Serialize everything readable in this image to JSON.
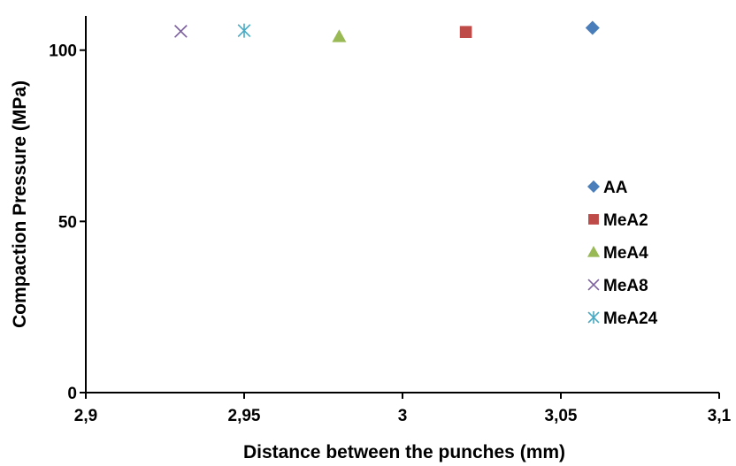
{
  "chart_data": {
    "type": "scatter",
    "title": "",
    "xlabel": "Distance between the punches (mm)",
    "ylabel": "Compaction Pressure (MPa)",
    "xlim": [
      2.9,
      3.1
    ],
    "ylim": [
      0,
      110
    ],
    "x_ticks": [
      2.9,
      2.95,
      3.0,
      3.05,
      3.1
    ],
    "x_tick_labels": [
      "2,9",
      "2,95",
      "3",
      "3,05",
      "3,1"
    ],
    "y_ticks": [
      0,
      50,
      100
    ],
    "y_tick_labels": [
      "0",
      "50",
      "100"
    ],
    "grid": false,
    "legend_position": "right",
    "series": [
      {
        "name": "AA",
        "marker": "diamond",
        "color": "#4a7ebb",
        "x": [
          3.06
        ],
        "y": [
          106.5
        ]
      },
      {
        "name": "MeA2",
        "marker": "square",
        "color": "#be4b48",
        "x": [
          3.02
        ],
        "y": [
          105.3
        ]
      },
      {
        "name": "MeA4",
        "marker": "triangle",
        "color": "#98b954",
        "x": [
          2.98
        ],
        "y": [
          104.0
        ]
      },
      {
        "name": "MeA8",
        "marker": "x",
        "color": "#7d60a0",
        "x": [
          2.93
        ],
        "y": [
          105.5
        ]
      },
      {
        "name": "MeA24",
        "marker": "star",
        "color": "#46aac4",
        "x": [
          2.95
        ],
        "y": [
          105.7
        ]
      }
    ]
  }
}
